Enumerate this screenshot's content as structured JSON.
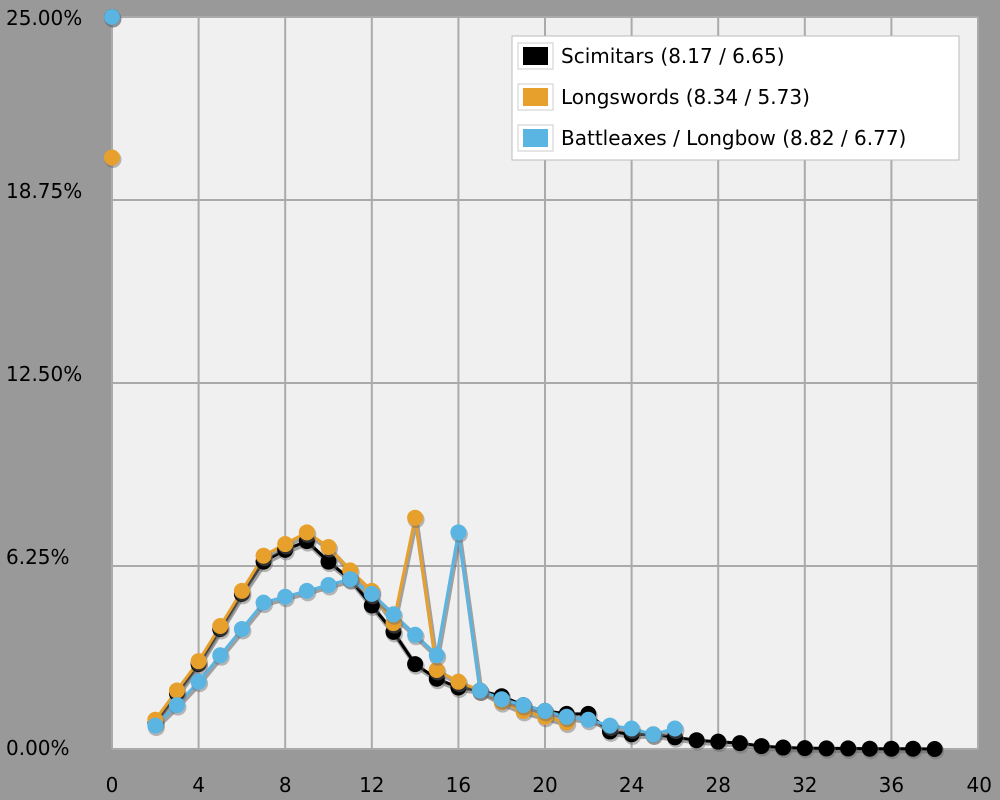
{
  "chart_data": {
    "type": "line",
    "title": "",
    "xlabel": "",
    "ylabel": "",
    "xlim": [
      0,
      40
    ],
    "ylim": [
      0,
      25
    ],
    "x_ticks": [
      0,
      4,
      8,
      12,
      16,
      20,
      24,
      28,
      32,
      36,
      40
    ],
    "x_tick_labels": [
      "0",
      "4",
      "8",
      "12",
      "16",
      "20",
      "24",
      "28",
      "32",
      "36",
      "40"
    ],
    "y_ticks": [
      0,
      6.25,
      12.5,
      18.75,
      25
    ],
    "y_tick_labels": [
      "0.00%",
      "6.25%",
      "12.50%",
      "18.75%",
      "25.00%"
    ],
    "grid": true,
    "legend_position": "top-right",
    "series": [
      {
        "name": "Scimitars (8.17 / 6.65)",
        "color": "#000000",
        "points": [
          [
            0,
            25.0
          ],
          [
            2,
            0.9
          ],
          [
            3,
            1.9
          ],
          [
            4,
            2.9
          ],
          [
            5,
            4.1
          ],
          [
            6,
            5.3
          ],
          [
            7,
            6.4
          ],
          [
            8,
            6.8
          ],
          [
            9,
            7.1
          ],
          [
            10,
            6.4
          ],
          [
            11,
            5.8
          ],
          [
            12,
            4.9
          ],
          [
            13,
            4.0
          ],
          [
            14,
            2.9
          ],
          [
            15,
            2.4
          ],
          [
            16,
            2.1
          ],
          [
            17,
            2.0
          ],
          [
            18,
            1.8
          ],
          [
            19,
            1.5
          ],
          [
            20,
            1.3
          ],
          [
            21,
            1.2
          ],
          [
            22,
            1.2
          ],
          [
            23,
            0.6
          ],
          [
            24,
            0.5
          ],
          [
            25,
            0.5
          ],
          [
            26,
            0.4
          ],
          [
            27,
            0.3
          ],
          [
            28,
            0.25
          ],
          [
            29,
            0.2
          ],
          [
            30,
            0.1
          ],
          [
            31,
            0.05
          ],
          [
            32,
            0.03
          ],
          [
            33,
            0.02
          ],
          [
            34,
            0.02
          ],
          [
            35,
            0.01
          ],
          [
            36,
            0.01
          ],
          [
            37,
            0.01
          ],
          [
            38,
            0.0
          ]
        ]
      },
      {
        "name": "Longswords (8.34 / 5.73)",
        "color": "#E8A02C",
        "points": [
          [
            0,
            20.2
          ],
          [
            2,
            1.0
          ],
          [
            3,
            2.0
          ],
          [
            4,
            3.0
          ],
          [
            5,
            4.2
          ],
          [
            6,
            5.4
          ],
          [
            7,
            6.6
          ],
          [
            8,
            7.0
          ],
          [
            9,
            7.4
          ],
          [
            10,
            6.9
          ],
          [
            11,
            6.1
          ],
          [
            12,
            5.4
          ],
          [
            13,
            4.3
          ],
          [
            14,
            7.9
          ],
          [
            15,
            2.7
          ],
          [
            16,
            2.3
          ],
          [
            17,
            2.0
          ],
          [
            18,
            1.6
          ],
          [
            19,
            1.3
          ],
          [
            20,
            1.1
          ],
          [
            21,
            0.9
          ]
        ]
      },
      {
        "name": "Battleaxes / Longbow (8.82 / 6.77)",
        "color": "#5BB5E3",
        "points": [
          [
            0,
            25.0
          ],
          [
            2,
            0.8
          ],
          [
            3,
            1.5
          ],
          [
            4,
            2.3
          ],
          [
            5,
            3.2
          ],
          [
            6,
            4.1
          ],
          [
            7,
            5.0
          ],
          [
            8,
            5.2
          ],
          [
            9,
            5.4
          ],
          [
            10,
            5.6
          ],
          [
            11,
            5.8
          ],
          [
            12,
            5.3
          ],
          [
            13,
            4.6
          ],
          [
            14,
            3.9
          ],
          [
            15,
            3.2
          ],
          [
            16,
            7.4
          ],
          [
            17,
            2.0
          ],
          [
            18,
            1.7
          ],
          [
            19,
            1.5
          ],
          [
            20,
            1.3
          ],
          [
            21,
            1.1
          ],
          [
            22,
            1.0
          ],
          [
            23,
            0.8
          ],
          [
            24,
            0.7
          ],
          [
            25,
            0.5
          ],
          [
            26,
            0.7
          ]
        ]
      }
    ]
  }
}
